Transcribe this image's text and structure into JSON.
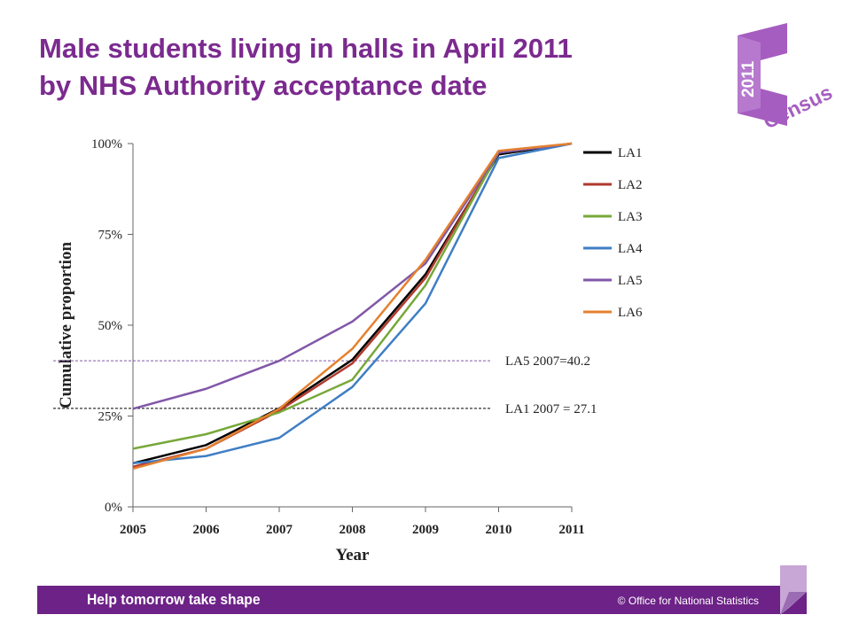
{
  "slide": {
    "title_line1": "Male students living in halls in April 2011",
    "title_line2": "by NHS Authority acceptance date",
    "logo_year": "2011",
    "logo_word": "Census",
    "footer_left": "Help tomorrow take shape",
    "footer_right": "© Office for National Statistics"
  },
  "colors": {
    "title": "#7b2a8f",
    "footer": "#6d2287",
    "logo": "#a55dc0"
  },
  "chart_data": {
    "type": "line",
    "title": "",
    "xlabel": "Year",
    "ylabel": "Cumulative proportion",
    "x": [
      "2005",
      "2006",
      "2007",
      "2008",
      "2009",
      "2010",
      "2011"
    ],
    "ylim": [
      0,
      100
    ],
    "yticks": [
      "0%",
      "25%",
      "50%",
      "75%",
      "100%"
    ],
    "grid": false,
    "legend_position": "right",
    "series": [
      {
        "name": "LA1",
        "color": "#000000",
        "values": [
          12,
          17,
          27.1,
          40.5,
          64,
          97,
          100
        ]
      },
      {
        "name": "LA2",
        "color": "#b03a2e",
        "values": [
          11,
          16,
          26.5,
          39.5,
          63,
          97.5,
          100
        ]
      },
      {
        "name": "LA3",
        "color": "#77a83a",
        "values": [
          16,
          20,
          26,
          35,
          61,
          97.5,
          100
        ]
      },
      {
        "name": "LA4",
        "color": "#3f7ec5",
        "values": [
          12,
          14,
          19,
          33,
          56,
          96,
          100
        ]
      },
      {
        "name": "LA5",
        "color": "#8157a8",
        "values": [
          27,
          32.5,
          40.2,
          51,
          67,
          97.5,
          100
        ]
      },
      {
        "name": "LA6",
        "color": "#e5812f",
        "values": [
          10.5,
          16,
          27,
          43.5,
          68,
          98,
          100
        ]
      }
    ],
    "annotations": [
      {
        "text": "LA5 2007=40.2",
        "series": "LA5",
        "x": "2007",
        "y": 40.2
      },
      {
        "text": "LA1 2007 = 27.1",
        "series": "LA1",
        "x": "2007",
        "y": 27.1
      }
    ]
  }
}
